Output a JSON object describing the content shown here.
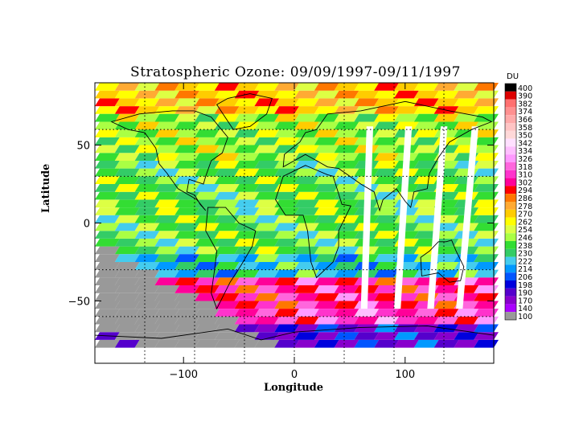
{
  "chart_data": {
    "type": "heatmap",
    "title": "Stratospheric Ozone: 09/09/1997-09/11/1997",
    "xlabel": "Longitude",
    "ylabel": "Latitude",
    "xlim": [
      -180,
      180
    ],
    "ylim": [
      -90,
      90
    ],
    "x_ticks": [
      {
        "value": -100,
        "label": "−100"
      },
      {
        "value": 0,
        "label": "0"
      },
      {
        "value": 100,
        "label": "100"
      }
    ],
    "y_ticks": [
      {
        "value": 50,
        "label": "50"
      },
      {
        "value": 0,
        "label": "0"
      },
      {
        "value": -50,
        "label": "−50"
      }
    ],
    "grid_x": [
      -135,
      -90,
      -45,
      0,
      45,
      90,
      135
    ],
    "grid_y": [
      -60,
      -30,
      30,
      60
    ],
    "grid": true,
    "colorbar": {
      "unit": "DU",
      "levels": [
        "400",
        "390",
        "382",
        "374",
        "366",
        "358",
        "350",
        "342",
        "334",
        "326",
        "318",
        "310",
        "302",
        "294",
        "286",
        "278",
        "270",
        "262",
        "254",
        "246",
        "238",
        "230",
        "222",
        "214",
        "206",
        "198",
        "190",
        "170",
        "140",
        "100"
      ],
      "colors": [
        "#000000",
        "#dd0000",
        "#ff7070",
        "#ff9090",
        "#ffaaaa",
        "#ffc4c4",
        "#ffd8d8",
        "#ffe0ff",
        "#ffbfff",
        "#ff99ff",
        "#ff66dd",
        "#ff33cc",
        "#ff0099",
        "#ff0000",
        "#ff7700",
        "#ffaa33",
        "#ffcc00",
        "#ffff00",
        "#ddff44",
        "#aaff44",
        "#33dd33",
        "#33cc66",
        "#44ccee",
        "#0099ff",
        "#0055ff",
        "#0000dd",
        "#5500cc",
        "#8800cc",
        "#aa00ff",
        "#999999"
      ]
    },
    "regions": [
      {
        "latitude_band": "70 to 90",
        "value": 270
      },
      {
        "latitude_band": "40 to 70",
        "value": 246
      },
      {
        "latitude_band": "10 to 40",
        "value": 238
      },
      {
        "latitude_band": "-20 to 10",
        "value": 238
      },
      {
        "latitude_band": "-35 to -20",
        "value": 222
      },
      {
        "latitude_band": "-55 to -35",
        "value": 302
      },
      {
        "latitude_band": "-65 to -55",
        "value": 310
      },
      {
        "latitude_band": "-80 to -65",
        "value": 190
      }
    ]
  }
}
